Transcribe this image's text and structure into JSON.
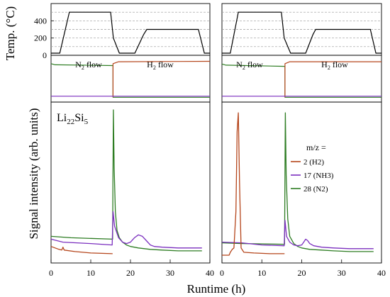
{
  "figure": {
    "temp_axis_label": "Temp. (°C)",
    "signal_axis_label": "Signal intensity (arb. units)",
    "runtime_axis_label": "Runtime (h)"
  },
  "panels": {
    "left": {
      "annotation": "Li22Si5",
      "annotation_main": "Li",
      "annotation_sub1": "22",
      "annotation_mid": "Si",
      "annotation_sub2": "5",
      "flow_n2_label": "N2 flow",
      "flow_h2_label": "H2 flow"
    },
    "right": {
      "flow_n2_label": "N2 flow",
      "flow_h2_label": "H2 flow",
      "legend_title": "m/z ="
    }
  },
  "legend": [
    {
      "mz": "2",
      "species": "(H2)",
      "color": "#b5451b"
    },
    {
      "mz": "17",
      "species": "(NH3)",
      "color": "#7b2fbf"
    },
    {
      "mz": "28",
      "species": "(N2)",
      "color": "#2e7d23"
    }
  ],
  "chart_data": [
    {
      "type": "line",
      "panel": "left-temperature",
      "xlabel": "",
      "ylabel": "Temp. (°C)",
      "ylim": [
        0,
        600
      ],
      "yticks": [
        0,
        200,
        400
      ],
      "grid": "dashed horizontal",
      "series": [
        {
          "color": "#000000",
          "x": [
            0,
            2.2,
            4.6,
            15.0,
            15.7,
            17.2,
            21.1,
            23.3,
            24.1,
            37.1,
            38.6,
            40
          ],
          "y": [
            25,
            25,
            500,
            500,
            200,
            25,
            25,
            240,
            300,
            300,
            25,
            25
          ]
        }
      ]
    },
    {
      "type": "line",
      "panel": "right-temperature",
      "xlabel": "",
      "ylabel": "",
      "ylim": [
        0,
        600
      ],
      "yticks": [
        0,
        200,
        400
      ],
      "grid": "dashed horizontal",
      "series": [
        {
          "color": "#000000",
          "x": [
            0,
            2.1,
            4.1,
            14.9,
            15.6,
            17.2,
            21.0,
            22.8,
            23.5,
            37.2,
            38.6,
            40
          ],
          "y": [
            25,
            25,
            500,
            500,
            200,
            25,
            25,
            240,
            300,
            300,
            25,
            25
          ]
        }
      ]
    },
    {
      "type": "line",
      "panel": "left-flow",
      "ylabel": "",
      "series": [
        {
          "color": "#2e7d23",
          "x": [
            0,
            1,
            15.6,
            15.6,
            40
          ],
          "y": [
            0.93,
            0.9,
            0.88,
            0.05,
            0.05
          ]
        },
        {
          "color": "#b5451b",
          "x": [
            15.6,
            15.6,
            17,
            40
          ],
          "y": [
            0.05,
            0.93,
            0.98,
            0.99
          ]
        },
        {
          "color": "#7b2fbf",
          "x": [
            0,
            40
          ],
          "y": [
            0.08,
            0.08
          ]
        }
      ]
    },
    {
      "type": "line",
      "panel": "right-flow",
      "ylabel": "",
      "series": [
        {
          "color": "#2e7d23",
          "x": [
            0,
            1,
            15.8,
            15.8,
            40
          ],
          "y": [
            0.92,
            0.89,
            0.86,
            0.05,
            0.05
          ]
        },
        {
          "color": "#b5451b",
          "x": [
            15.8,
            15.8,
            17,
            40
          ],
          "y": [
            0.05,
            0.93,
            0.98,
            0.98
          ]
        },
        {
          "color": "#7b2fbf",
          "x": [
            0,
            40
          ],
          "y": [
            0.08,
            0.08
          ]
        }
      ]
    },
    {
      "type": "line",
      "panel": "left-signal",
      "xlabel": "Runtime (h)",
      "ylabel": "Signal intensity (arb. units)",
      "xlim": [
        0,
        40
      ],
      "xticks": [
        0,
        10,
        20,
        30,
        40
      ],
      "series": [
        {
          "color": "#2e7d23",
          "x": [
            0,
            5,
            15.5,
            15.7,
            15.9,
            16.2,
            16.6,
            17.2,
            18,
            19,
            20,
            22,
            25,
            28,
            32,
            38
          ],
          "y": [
            0.13,
            0.12,
            0.11,
            1.0,
            0.6,
            0.3,
            0.17,
            0.12,
            0.09,
            0.07,
            0.06,
            0.05,
            0.04,
            0.035,
            0.03,
            0.03
          ]
        },
        {
          "color": "#7b2fbf",
          "x": [
            0,
            3,
            10,
            15.4,
            15.6,
            16,
            17,
            18,
            19,
            20,
            21,
            22,
            23,
            24,
            25,
            26,
            28,
            32,
            38
          ],
          "y": [
            0.11,
            0.09,
            0.08,
            0.07,
            0.3,
            0.2,
            0.12,
            0.09,
            0.08,
            0.09,
            0.12,
            0.14,
            0.13,
            0.1,
            0.07,
            0.06,
            0.055,
            0.05,
            0.05
          ]
        },
        {
          "color": "#b5451b",
          "x": [
            0,
            2,
            2.7,
            3,
            3.3,
            6,
            10,
            15.5
          ],
          "y": [
            0.06,
            0.04,
            0.035,
            0.055,
            0.035,
            0.025,
            0.015,
            0.01
          ]
        }
      ]
    },
    {
      "type": "line",
      "panel": "right-signal",
      "xlabel": "Runtime (h)",
      "ylabel": "",
      "xlim": [
        0,
        40
      ],
      "xticks": [
        0,
        10,
        20,
        30,
        40
      ],
      "series": [
        {
          "color": "#2e7d23",
          "x": [
            0,
            5,
            15.7,
            15.9,
            16.1,
            16.5,
            17,
            18,
            19,
            20,
            22,
            25,
            28,
            32,
            38
          ],
          "y": [
            0.085,
            0.08,
            0.075,
            0.98,
            0.55,
            0.25,
            0.13,
            0.08,
            0.06,
            0.05,
            0.04,
            0.035,
            0.03,
            0.025,
            0.025
          ]
        },
        {
          "color": "#7b2fbf",
          "x": [
            0,
            5,
            10,
            15.6,
            15.8,
            16.2,
            17,
            18,
            19,
            20,
            20.5,
            21,
            21.5,
            22,
            23,
            25,
            28,
            32,
            38
          ],
          "y": [
            0.09,
            0.085,
            0.07,
            0.065,
            0.24,
            0.13,
            0.09,
            0.07,
            0.065,
            0.07,
            0.09,
            0.11,
            0.1,
            0.08,
            0.065,
            0.055,
            0.05,
            0.045,
            0.045
          ]
        },
        {
          "color": "#b5451b",
          "x": [
            0,
            1.8,
            2.1,
            2.6,
            3.0,
            3.5,
            3.8,
            4.1,
            4.4,
            4.8,
            5.5,
            8,
            12,
            15.7
          ],
          "y": [
            0.0,
            0.0,
            0.02,
            0.04,
            0.05,
            0.3,
            0.85,
            0.98,
            0.5,
            0.05,
            0.02,
            0.015,
            0.01,
            0.01
          ]
        }
      ]
    }
  ]
}
